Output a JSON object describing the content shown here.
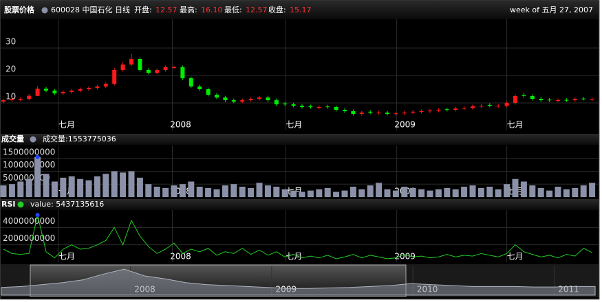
{
  "chart_data": [
    {
      "type": "candlestick",
      "title": "股票价格",
      "legend_color": "#8a91a8",
      "tooltip": {
        "name": "600028 中国石化 日线",
        "open_label": "开盘:",
        "open": "12.57",
        "high_label": "最高:",
        "high": "16.10",
        "low_label": "最低:",
        "low": "12.57",
        "close_label": "收盘:",
        "close": "15.17",
        "date": "week of 五月 27, 2007"
      },
      "categories": [
        null,
        null,
        null,
        null,
        null,
        null,
        null,
        null,
        null,
        null,
        null,
        null,
        null,
        null,
        null,
        null,
        null,
        null,
        null,
        null,
        null,
        null,
        null,
        null,
        null,
        null,
        null,
        null,
        null,
        null,
        null,
        null,
        null,
        null,
        null,
        null,
        null,
        null,
        null,
        null,
        null,
        null,
        null,
        null,
        null,
        null,
        null,
        null,
        null,
        null,
        null,
        null,
        null,
        null,
        null,
        null,
        null,
        null,
        null,
        null,
        null,
        null,
        null,
        null,
        null,
        null,
        null,
        null,
        null,
        null
      ],
      "open": [
        10.5,
        11,
        11.2,
        11.5,
        12.57,
        15.17,
        14.5,
        13.5,
        14,
        14.5,
        15,
        15.5,
        16,
        17,
        22,
        24,
        26,
        22,
        21,
        22,
        23,
        23,
        19,
        16,
        15,
        13,
        12,
        11,
        10.5,
        11,
        11.5,
        12,
        11,
        9.8,
        9.5,
        9,
        8.8,
        8.3,
        8.7,
        8.5,
        7.5,
        7,
        6,
        6.8,
        6.3,
        6.5,
        6,
        6.2,
        6.5,
        6.8,
        7,
        7.2,
        7.7,
        7.5,
        8,
        8.2,
        8.8,
        9.3,
        8.8,
        9,
        10,
        12.8,
        12.5,
        11.5,
        11.2,
        10.9,
        11.1,
        11,
        11.6,
        11.3
      ],
      "high": [
        11.6,
        12.1,
        12.1,
        13.2,
        16.1,
        15.8,
        15.1,
        14.6,
        15.1,
        15.6,
        16.1,
        16.6,
        17.6,
        22.8,
        25,
        28,
        26.6,
        22.6,
        22.6,
        23.6,
        23.6,
        23.6,
        19.6,
        16.6,
        15.6,
        13.6,
        12.6,
        11.6,
        11.6,
        12.1,
        12.6,
        12.6,
        11.6,
        10.4,
        10.1,
        9.6,
        9.4,
        9.1,
        9.3,
        9.1,
        8.1,
        7.6,
        7.1,
        7.4,
        7.1,
        7.1,
        6.8,
        7.1,
        7.4,
        7.6,
        7.8,
        8.1,
        8.3,
        8.6,
        8.8,
        9.4,
        9.6,
        9.9,
        9.6,
        10.6,
        13.1,
        13.6,
        13.1,
        12.1,
        11.8,
        11.6,
        11.7,
        12.1,
        12.2,
        12.1
      ],
      "low": [
        9.9,
        10.4,
        10.6,
        10.9,
        12.57,
        13.9,
        12.9,
        12.9,
        13.4,
        13.9,
        14.4,
        14.9,
        15.4,
        16.4,
        21.4,
        23.4,
        21.4,
        20.4,
        20.4,
        21.4,
        22.4,
        18.4,
        15.4,
        14.4,
        12.4,
        11.4,
        10.4,
        9.9,
        9.9,
        10.4,
        10.9,
        10.4,
        8.9,
        8.9,
        8.4,
        7.9,
        7.9,
        7.7,
        7.9,
        6.9,
        6.4,
        5.4,
        5.4,
        5.9,
        5.7,
        5.4,
        5.4,
        5.6,
        5.9,
        6.2,
        6.4,
        6.6,
        6.9,
        6.9,
        7.4,
        7.6,
        8.2,
        8.4,
        8.2,
        8.4,
        9.4,
        11.9,
        10.9,
        10.4,
        10.4,
        10.3,
        10.4,
        10.4,
        10.9,
        10.7
      ],
      "close": [
        11,
        11.5,
        11.5,
        12.6,
        15.17,
        14.5,
        13.5,
        14,
        14.5,
        15,
        15.5,
        16,
        17,
        22,
        24,
        26,
        22,
        21,
        22,
        23,
        23,
        19,
        16,
        15,
        13,
        12,
        11,
        10.5,
        11,
        11.5,
        12,
        11,
        9.5,
        9.5,
        9,
        8.5,
        8.5,
        8.5,
        8.5,
        7.5,
        7,
        6,
        6.5,
        6.5,
        6.5,
        6,
        6.2,
        6.5,
        6.8,
        7,
        7.2,
        7.5,
        7.5,
        8,
        8.2,
        8.8,
        9,
        9,
        9,
        10,
        12.5,
        12.5,
        11.5,
        11,
        11,
        11,
        11,
        11.5,
        11.5,
        11.5
      ],
      "up_color": "#ff1a1a",
      "down_color": "#00ee00",
      "ylim": [
        0,
        40
      ],
      "yticks": [
        10,
        20,
        30
      ],
      "xticks": [
        {
          "value": 6.45,
          "label": "七月"
        },
        {
          "value": 19.8,
          "label": "2008"
        },
        {
          "value": 33.1,
          "label": "七月"
        },
        {
          "value": 46.1,
          "label": "2009"
        },
        {
          "value": 59,
          "label": "七月"
        }
      ],
      "grid": true
    },
    {
      "type": "bar",
      "title": "成交量",
      "legend_color": "#8a91a8",
      "tooltip": "成交量:1553775036",
      "values": [
        450000000,
        500000000,
        600000000,
        700000000,
        1553775036,
        900000000,
        600000000,
        750000000,
        800000000,
        700000000,
        650000000,
        800000000,
        900000000,
        1000000000,
        950000000,
        1000000000,
        750000000,
        500000000,
        400000000,
        350000000,
        450000000,
        500000000,
        600000000,
        400000000,
        350000000,
        300000000,
        450000000,
        500000000,
        400000000,
        350000000,
        550000000,
        450000000,
        400000000,
        300000000,
        250000000,
        200000000,
        250000000,
        300000000,
        350000000,
        200000000,
        250000000,
        400000000,
        300000000,
        450000000,
        550000000,
        300000000,
        250000000,
        400000000,
        350000000,
        300000000,
        250000000,
        300000000,
        350000000,
        300000000,
        400000000,
        450000000,
        350000000,
        400000000,
        300000000,
        500000000,
        700000000,
        600000000,
        450000000,
        350000000,
        250000000,
        400000000,
        300000000,
        350000000,
        450000000,
        550000000
      ],
      "color": "#8a91a8",
      "highlight_color": "#2244ff",
      "ylim": [
        0,
        2000000000
      ],
      "yticks": [
        500000000,
        1000000000,
        1500000000
      ],
      "grid": true
    },
    {
      "type": "line",
      "title": "RSI",
      "legend_color": "#22cc22",
      "tooltip": "value: 5437135616",
      "values": [
        1500000000,
        1000000000,
        900000000,
        1000000000,
        5437135616,
        1200000000,
        500000000,
        1500000000,
        2000000000,
        1500000000,
        1600000000,
        2000000000,
        2500000000,
        4000000000,
        2000000000,
        4800000000,
        3000000000,
        1800000000,
        1000000000,
        1500000000,
        2200000000,
        1000000000,
        1500000000,
        1200000000,
        1600000000,
        800000000,
        1200000000,
        1000000000,
        1600000000,
        900000000,
        1400000000,
        800000000,
        1200000000,
        600000000,
        900000000,
        500000000,
        700000000,
        500000000,
        800000000,
        400000000,
        600000000,
        900000000,
        500000000,
        800000000,
        600000000,
        400000000,
        500000000,
        900000000,
        600000000,
        700000000,
        500000000,
        600000000,
        900000000,
        600000000,
        800000000,
        700000000,
        1000000000,
        800000000,
        600000000,
        1000000000,
        2000000000,
        1200000000,
        900000000,
        600000000,
        800000000,
        500000000,
        900000000,
        700000000,
        1600000000,
        1100000000
      ],
      "color": "#22cc22",
      "highlight_color": "#2244ff",
      "ylim": [
        0,
        6000000000
      ],
      "yticks": [
        2000000000,
        4000000000
      ],
      "grid": true
    },
    {
      "type": "area",
      "values": [
        8,
        9,
        11,
        13,
        16,
        22,
        27,
        20,
        17,
        13,
        11,
        10,
        9,
        8,
        7,
        7,
        7.5,
        8,
        9,
        10,
        12,
        11,
        10,
        9,
        9,
        9,
        8.5,
        8.5,
        9,
        9
      ],
      "color": "#8a8f9a",
      "ylim": [
        0,
        30
      ],
      "xticks": [
        {
          "value": 6.3,
          "label": "2008"
        },
        {
          "value": 13.2,
          "label": "2009"
        },
        {
          "value": 20.1,
          "label": "2010"
        },
        {
          "value": 27,
          "label": "2011"
        }
      ]
    }
  ]
}
